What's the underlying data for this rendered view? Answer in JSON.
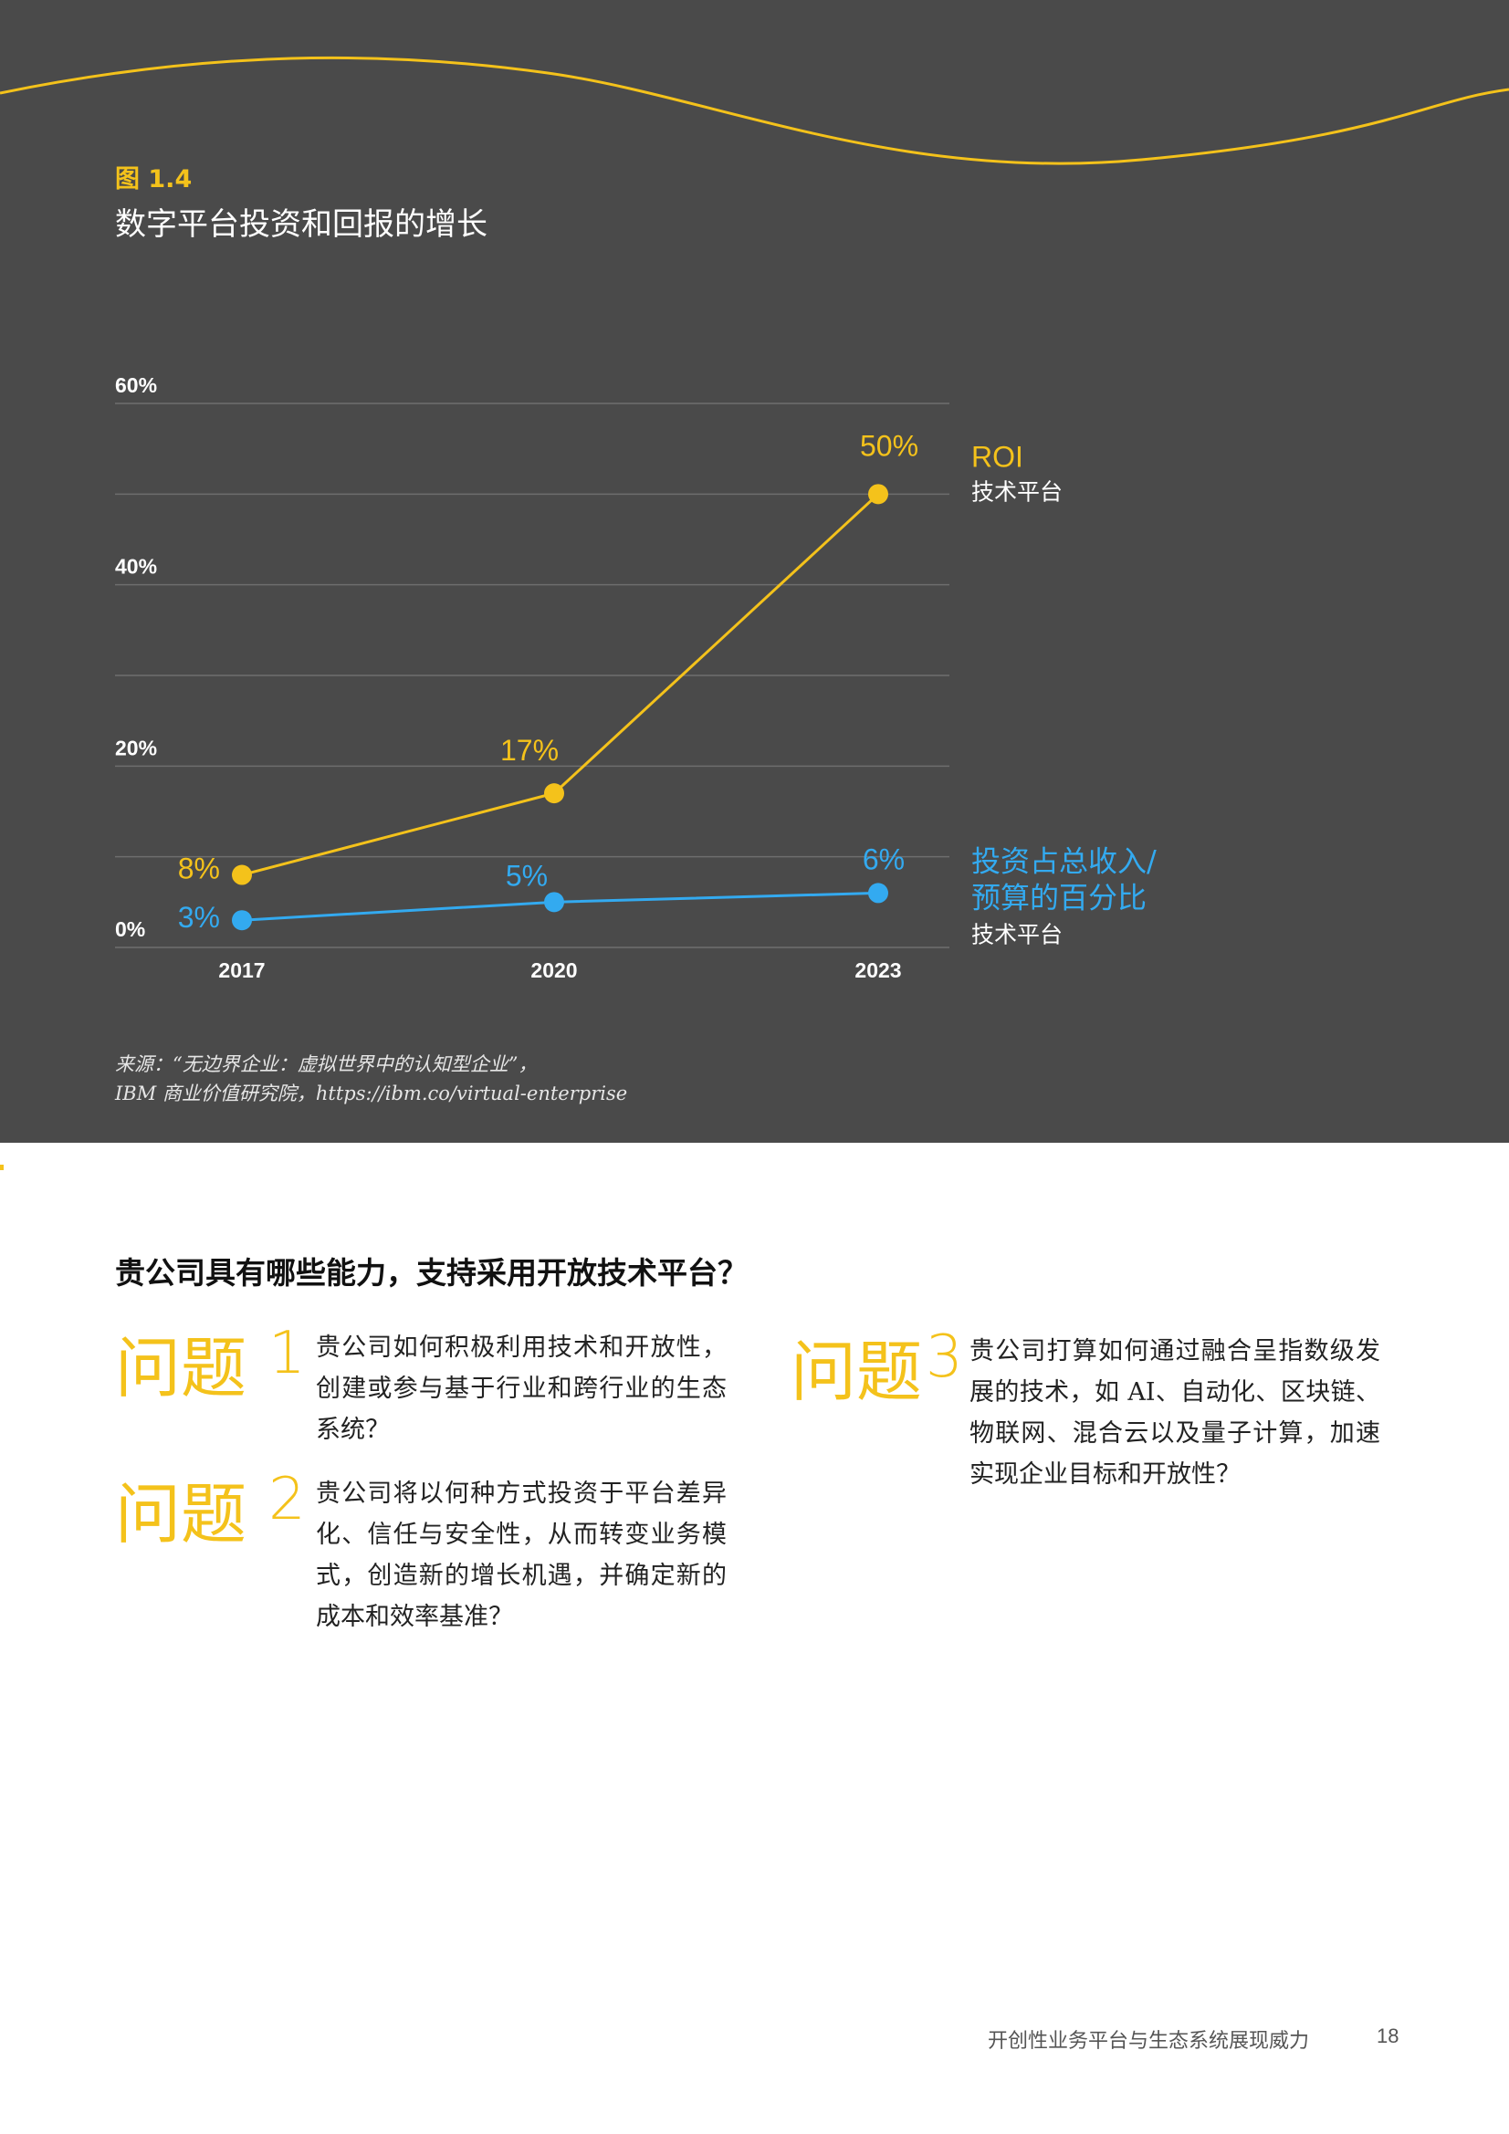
{
  "figure": {
    "label": "图 1.4",
    "title": "数字平台投资和回报的增长",
    "source_line1": "来源：“无边界企业：虚拟世界中的认知型企业”，",
    "source_line2": "IBM 商业价值研究院，https://ibm.co/virtual-enterprise"
  },
  "colors": {
    "panel_bg": "#4a4a4a",
    "roi": "#f4c21b",
    "investment": "#33aaf0",
    "grid": "#6e6e6e"
  },
  "chart_data": {
    "type": "line",
    "x": [
      "2017",
      "2020",
      "2023"
    ],
    "ylim": [
      0,
      60
    ],
    "y_ticks": [
      "0%",
      "20%",
      "40%",
      "60%"
    ],
    "grid": true,
    "series": [
      {
        "name": "ROI",
        "name_sub": "技术平台",
        "values": [
          8,
          17,
          50
        ],
        "labels": [
          "8%",
          "17%",
          "50%"
        ]
      },
      {
        "name": "投资占总收入/预算的百分比",
        "name_line1": "投资占总收入/",
        "name_line2": "预算的百分比",
        "name_sub": "技术平台",
        "values": [
          3,
          5,
          6
        ],
        "labels": [
          "3%",
          "5%",
          "6%"
        ]
      }
    ]
  },
  "section": {
    "heading": "贵公司具有哪些能力，支持采用开放技术平台？"
  },
  "questions": [
    {
      "label": "问题",
      "number": "1",
      "text": "贵公司如何积极利用技术和开放性，创建或参与基于行业和跨行业的生态系统？"
    },
    {
      "label": "问题",
      "number": "2",
      "text": "贵公司将以何种方式投资于平台差异化、信任与安全性，从而转变业务模式，创造新的增长机遇，并确定新的成本和效率基准？"
    },
    {
      "label": "问题",
      "number": "3",
      "text": "贵公司打算如何通过融合呈指数级发展的技术，如 AI、自动化、区块链、物联网、混合云以及量子计算，加速实现企业目标和开放性？"
    }
  ],
  "footer": {
    "title": "开创性业务平台与生态系统展现威力",
    "page": "18"
  }
}
